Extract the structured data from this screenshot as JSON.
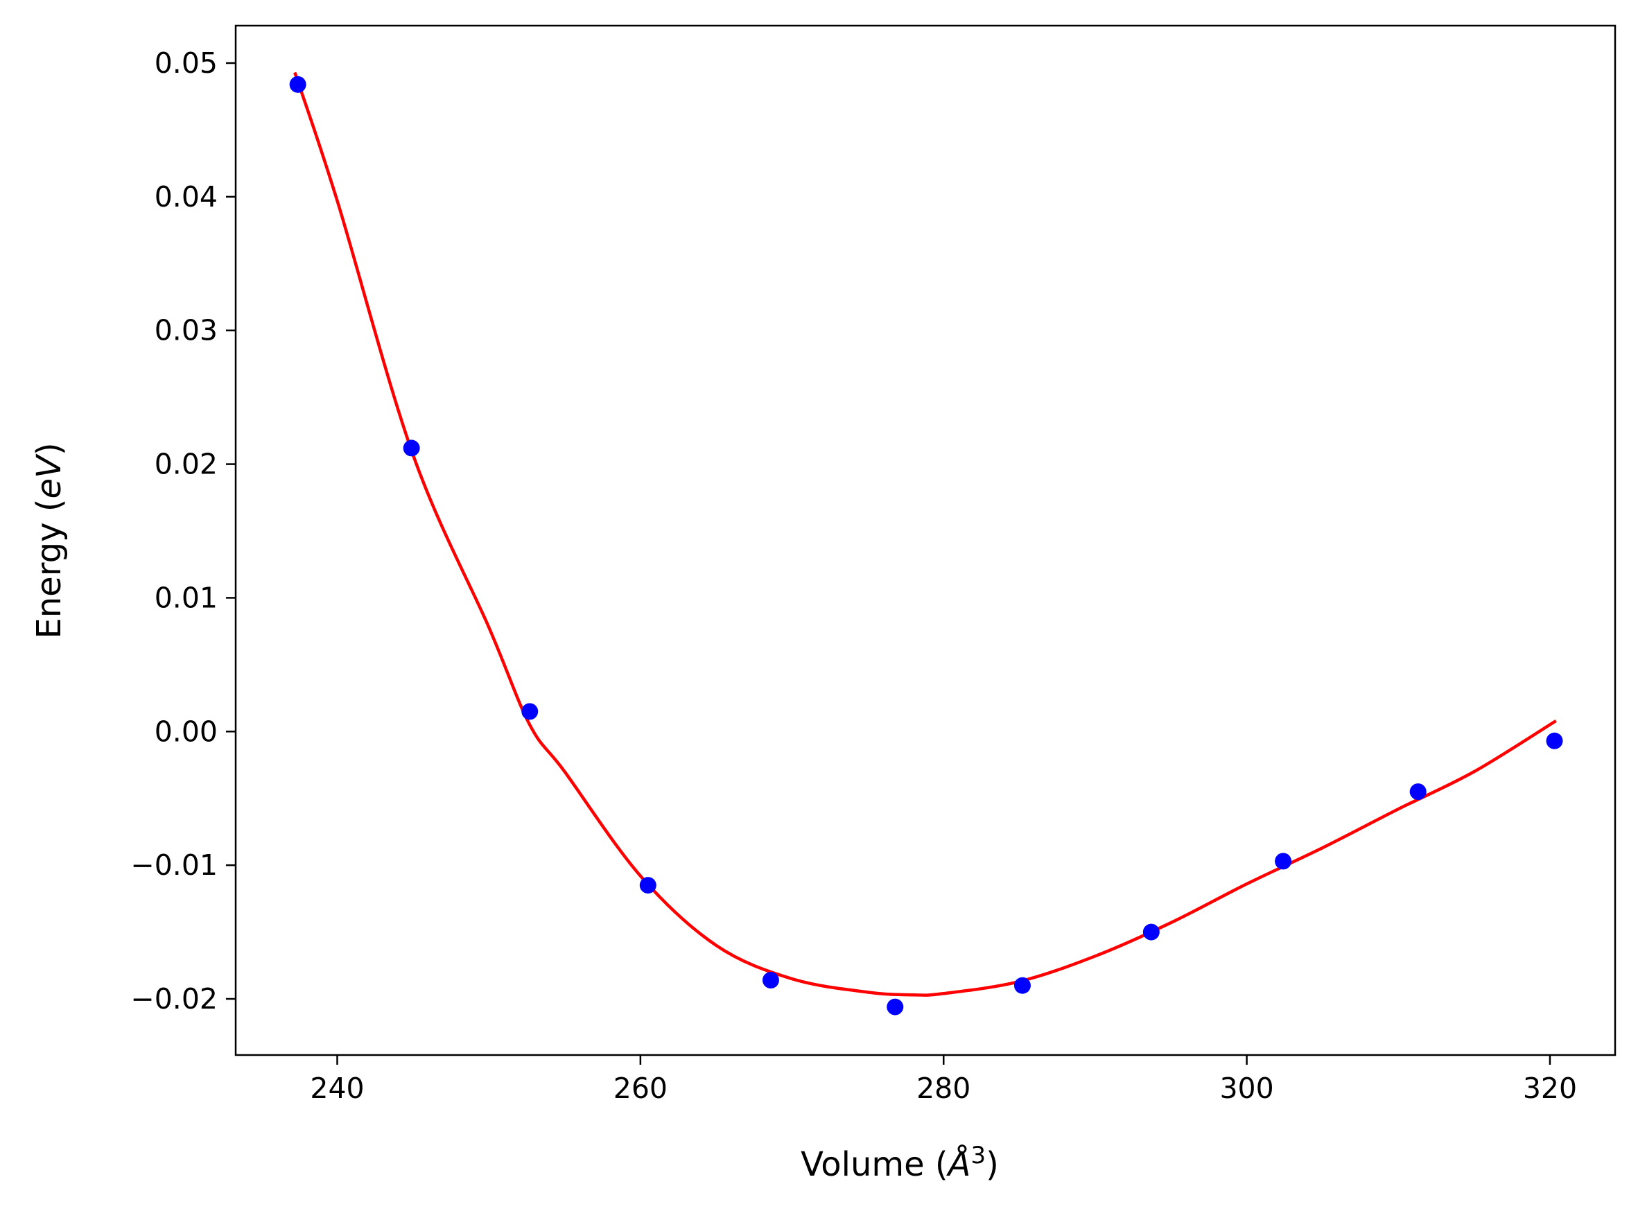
{
  "chart_data": {
    "type": "scatter",
    "title": "",
    "xlabel": "Volume (Å³)",
    "ylabel": "Energy (eV)",
    "xlabel_parts": {
      "prefix": "Volume (",
      "symbol": "Å",
      "sup": "3",
      "suffix": ")"
    },
    "ylabel_parts": {
      "prefix": "Energy (",
      "symbol": "eV",
      "suffix": ")"
    },
    "xlim": [
      233.3,
      324.3
    ],
    "ylim": [
      -0.0242,
      0.0528
    ],
    "grid": false,
    "legend": "none",
    "x_ticks": [
      240,
      260,
      280,
      300,
      320
    ],
    "x_tick_labels": [
      "240",
      "260",
      "280",
      "300",
      "320"
    ],
    "y_ticks": [
      0.05,
      0.04,
      0.03,
      0.02,
      0.01,
      0.0,
      -0.01,
      -0.02
    ],
    "y_tick_labels": [
      "0.05",
      "0.04",
      "0.03",
      "0.02",
      "0.01",
      "0.00",
      "−0.01",
      "−0.02"
    ],
    "series": [
      {
        "kind": "points",
        "color": "#0000ff",
        "x": [
          237.4,
          244.9,
          252.7,
          260.5,
          268.6,
          276.8,
          285.2,
          293.7,
          302.4,
          311.3,
          320.3
        ],
        "y": [
          0.0484,
          0.0212,
          0.0015,
          -0.0115,
          -0.0186,
          -0.0206,
          -0.019,
          -0.015,
          -0.0097,
          -0.0045,
          -0.0007
        ]
      },
      {
        "kind": "fit-curve",
        "color": "#ff0000",
        "x": [
          237.2,
          240,
          245,
          250,
          252.7,
          255,
          260,
          265,
          270,
          275,
          278,
          280,
          285,
          290,
          295,
          300,
          305,
          310,
          315,
          320.4
        ],
        "y": [
          0.0493,
          0.0397,
          0.0207,
          0.0078,
          0.0005,
          -0.003,
          -0.0108,
          -0.016,
          -0.0185,
          -0.0195,
          -0.0197,
          -0.0196,
          -0.0187,
          -0.0168,
          -0.0143,
          -0.0114,
          -0.0087,
          -0.0058,
          -0.003,
          0.0008
        ]
      }
    ]
  }
}
